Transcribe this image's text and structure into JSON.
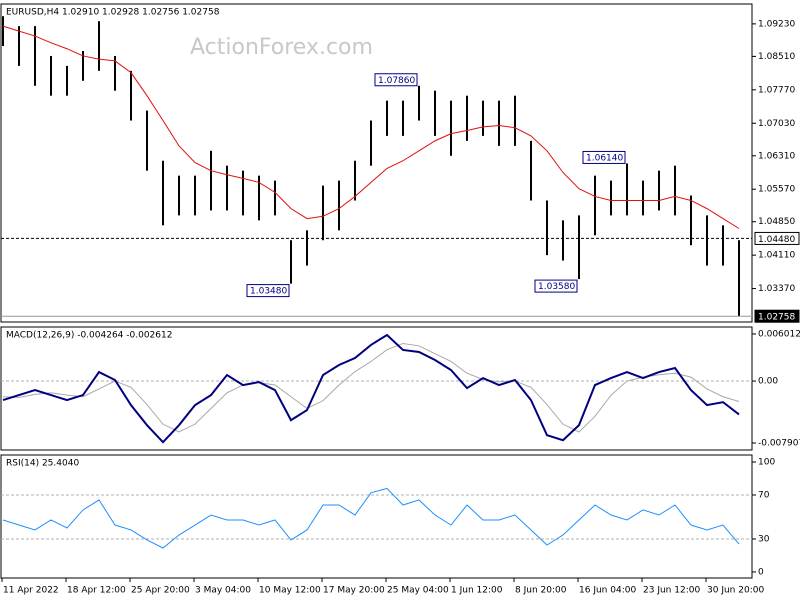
{
  "chart_data": [
    {
      "type": "ohlc",
      "title": "EURUSD,H4  1.02910 1.02928 1.02756 1.02758",
      "watermark": "ActionForex.com",
      "color": "#000000",
      "high": [
        1.094,
        1.0918,
        1.0918,
        1.0852,
        1.083,
        1.0863,
        1.0929,
        1.0852,
        1.0819,
        1.0731,
        1.062,
        1.0587,
        1.0587,
        1.0642,
        1.0609,
        1.0598,
        1.0587,
        1.0576,
        1.0444,
        1.0466,
        1.0565,
        1.0576,
        1.062,
        1.0709,
        1.0753,
        1.0753,
        1.0786,
        1.0775,
        1.0753,
        1.0764,
        1.0753,
        1.0753,
        1.0764,
        1.0664,
        1.0532,
        1.0488,
        1.0499,
        1.0587,
        1.0576,
        1.0614,
        1.0576,
        1.0598,
        1.0609,
        1.0543,
        1.0499,
        1.0477,
        1.0444
      ],
      "low": [
        1.0874,
        1.083,
        1.0786,
        1.0764,
        1.0764,
        1.0797,
        1.0819,
        1.0775,
        1.0709,
        1.0598,
        1.0477,
        1.0499,
        1.0499,
        1.051,
        1.051,
        1.0499,
        1.0488,
        1.0499,
        1.0348,
        1.0388,
        1.0444,
        1.0466,
        1.0532,
        1.0609,
        1.0675,
        1.0675,
        1.0709,
        1.0675,
        1.0631,
        1.0664,
        1.0675,
        1.0653,
        1.0653,
        1.0532,
        1.0411,
        1.0399,
        1.0358,
        1.0455,
        1.0499,
        1.0499,
        1.0499,
        1.051,
        1.0499,
        1.0433,
        1.0388,
        1.0388,
        1.0276
      ],
      "ma": {
        "color": "#e01010",
        "values": [
          1.0918,
          1.0907,
          1.0896,
          1.0881,
          1.0868,
          1.0852,
          1.0845,
          1.0841,
          1.0815,
          1.0764,
          1.0709,
          1.0653,
          1.0616,
          1.0598,
          1.0589,
          1.0581,
          1.0572,
          1.055,
          1.0514,
          1.0492,
          1.0497,
          1.0514,
          1.0541,
          1.0572,
          1.0603,
          1.062,
          1.0642,
          1.0664,
          1.068,
          1.0687,
          1.0695,
          1.0698,
          1.0693,
          1.0675,
          1.0642,
          1.0594,
          1.0558,
          1.0541,
          1.0532,
          1.0532,
          1.0532,
          1.0532,
          1.0541,
          1.0532,
          1.0514,
          1.0492,
          1.047
        ]
      },
      "ylim": [
        1.0263,
        1.0967
      ],
      "yticks": [
        {
          "value": 1.0923,
          "label": "1.09230"
        },
        {
          "value": 1.0851,
          "label": "1.08510"
        },
        {
          "value": 1.0777,
          "label": "1.07770"
        },
        {
          "value": 1.0703,
          "label": "1.07030"
        },
        {
          "value": 1.0631,
          "label": "1.06310"
        },
        {
          "value": 1.0557,
          "label": "1.05570"
        },
        {
          "value": 1.0485,
          "label": "1.04850"
        },
        {
          "value": 1.0411,
          "label": "1.04110"
        },
        {
          "value": 1.0337,
          "label": "1.03370"
        }
      ],
      "price_lines": [
        {
          "value": 1.0448,
          "label": "1.04480",
          "style": "dashed"
        },
        {
          "value": 1.02758,
          "label": "1.02758",
          "style": "solid"
        }
      ],
      "annotations": [
        {
          "index": 26,
          "value": 1.0786,
          "label": "1.07860"
        },
        {
          "index": 18,
          "value": 1.0348,
          "label": "1.03480"
        },
        {
          "index": 36,
          "value": 1.0358,
          "label": "1.03580"
        },
        {
          "index": 39,
          "value": 1.0614,
          "label": "1.06140"
        }
      ]
    },
    {
      "type": "line",
      "title": "MACD(12,26,9) -0.004264 -0.002612",
      "series": [
        {
          "color": "#000080",
          "values": [
            -0.00243,
            -0.00179,
            -0.00115,
            -0.00179,
            -0.00243,
            -0.00179,
            0.00115,
            0.00013,
            -0.00307,
            -0.00563,
            -0.0078,
            -0.00563,
            -0.00307,
            -0.00179,
            0.00077,
            -0.00051,
            -0.00013,
            -0.00115,
            -0.00499,
            -0.00371,
            0.00077,
            0.00205,
            0.00294,
            0.00461,
            0.00588,
            0.00397,
            0.00371,
            0.00269,
            0.00141,
            -0.0009,
            0.00038,
            -0.00051,
            0.00013,
            -0.00243,
            -0.00691,
            -0.00755,
            -0.00563,
            -0.00051,
            0.00038,
            0.00115,
            0.00038,
            0.00115,
            0.00166,
            -0.00115,
            -0.00307,
            -0.00269,
            -0.004264
          ]
        },
        {
          "color": "#a8a8a8",
          "values": [
            -0.002,
            -0.0021,
            -0.0017,
            -0.0015,
            -0.0018,
            -0.002,
            -0.001,
            0.0,
            -0.0008,
            -0.003,
            -0.0055,
            -0.0065,
            -0.0055,
            -0.0035,
            -0.0015,
            -0.0005,
            -0.0002,
            -0.0005,
            -0.002,
            -0.0035,
            -0.0025,
            -0.0005,
            0.0012,
            0.0025,
            0.004,
            0.0048,
            0.0045,
            0.0035,
            0.0025,
            0.001,
            0.0002,
            -0.0001,
            0.0,
            -0.0008,
            -0.003,
            -0.0055,
            -0.0065,
            -0.0045,
            -0.0018,
            0.0,
            0.0005,
            0.0008,
            0.001,
            0.0005,
            -0.001,
            -0.002,
            -0.002612
          ]
        }
      ],
      "ylim": [
        -0.0088,
        0.0069
      ],
      "yticks": [
        0.006012,
        {
          "value": 0,
          "label": "0.00"
        },
        -0.007907
      ],
      "levels": [
        0
      ]
    },
    {
      "type": "line",
      "title": "RSI(14) 25.4040",
      "categories": [
        "11 Apr 2022",
        null,
        null,
        null,
        "18 Apr 12:00",
        null,
        null,
        null,
        "25 Apr 20:00",
        null,
        null,
        null,
        "3 May 04:00",
        null,
        null,
        null,
        "10 May 12:00",
        null,
        null,
        null,
        "17 May 20:00",
        null,
        null,
        null,
        "25 May 04:00",
        null,
        null,
        null,
        "1 Jun 12:00",
        null,
        null,
        null,
        "8 Jun 20:00",
        null,
        null,
        null,
        "16 Jun 04:00",
        null,
        null,
        null,
        "23 Jun 12:00",
        null,
        null,
        null,
        "30 Jun 20:00",
        null,
        null
      ],
      "series": [
        {
          "color": "#1e90ff",
          "values": [
            47.3,
            42.7,
            38.2,
            47.3,
            40.0,
            56.4,
            65.5,
            42.7,
            38.2,
            29.1,
            21.8,
            33.6,
            42.7,
            51.8,
            47.3,
            47.3,
            42.7,
            47.3,
            29.1,
            38.2,
            60.9,
            60.9,
            51.8,
            72.0,
            76.0,
            60.9,
            65.5,
            51.8,
            42.7,
            60.9,
            47.3,
            47.3,
            51.8,
            38.2,
            24.5,
            33.6,
            47.3,
            60.9,
            51.8,
            47.3,
            56.4,
            51.8,
            60.9,
            42.7,
            38.2,
            42.7,
            25.404
          ]
        }
      ],
      "ylim": [
        -5.5,
        106.4
      ],
      "yticks": [
        100,
        70,
        30,
        0
      ],
      "levels": [
        70,
        30
      ]
    }
  ]
}
